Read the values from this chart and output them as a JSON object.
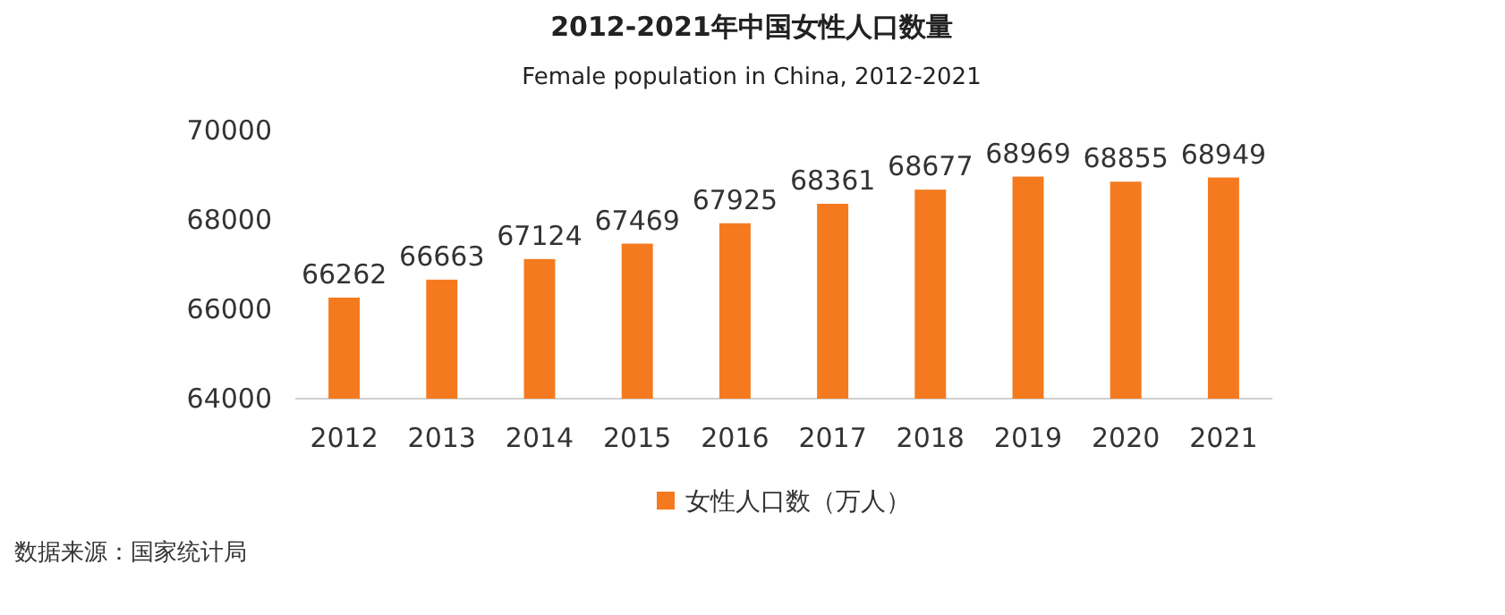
{
  "chart_data": {
    "type": "bar",
    "title": "2012-2021年中国女性人口数量",
    "subtitle": "Female population in China, 2012-2021",
    "categories": [
      "2012",
      "2013",
      "2014",
      "2015",
      "2016",
      "2017",
      "2018",
      "2019",
      "2020",
      "2021"
    ],
    "series": [
      {
        "name": "女性人口数（万人）",
        "color": "#f57a1f",
        "values": [
          66262,
          66663,
          67124,
          67469,
          67925,
          68361,
          68677,
          68969,
          68855,
          68949
        ]
      }
    ],
    "ylim": [
      64000,
      70000
    ],
    "yticks": [
      64000,
      66000,
      68000,
      70000
    ],
    "data_labels": true,
    "grid": false,
    "legend": "bottom",
    "annotations": [
      "数据来源：国家统计局"
    ]
  }
}
